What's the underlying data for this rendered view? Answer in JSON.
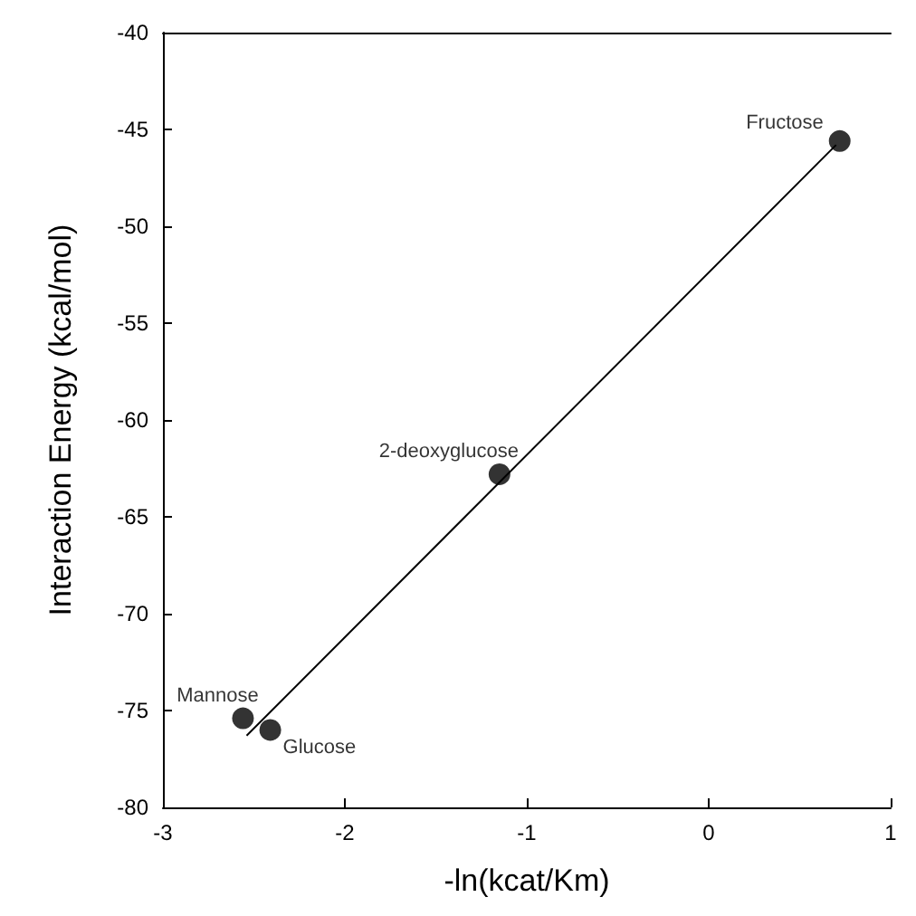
{
  "chart_data": {
    "type": "scatter",
    "xlabel": "-ln(kcat/Km)",
    "ylabel": "Interaction Energy (kcal/mol)",
    "series": [
      {
        "color": "#000000",
        "marker": "circle",
        "x": [
          0.72,
          -1.15,
          -2.56,
          -2.41
        ],
        "values": [
          -45.6,
          -62.8,
          -75.4,
          -76.0
        ]
      },
      {
        "type": "line",
        "color": "#000000",
        "marker": "none",
        "x": [
          -2.54,
          0.7
        ],
        "values": [
          -76.3,
          -45.8
        ]
      }
    ],
    "annotations": [
      {
        "text": "Fructose",
        "x": 0.72,
        "y": -45.6
      },
      {
        "text": "2-deoxyglucose",
        "x": -1.15,
        "y": -62.8
      },
      {
        "text": "Mannose",
        "x": -2.56,
        "y": -75.4
      },
      {
        "text": "Glucose",
        "x": -2.41,
        "y": -76.0
      }
    ],
    "xlim": [
      -3,
      1
    ],
    "xticks": [
      -3,
      -2,
      -1,
      0,
      1
    ],
    "ylim": [
      -80,
      -40
    ],
    "yticks": [
      -80,
      -75,
      -70,
      -65,
      -60,
      -55,
      -50,
      -45,
      -40
    ],
    "grid": false
  }
}
